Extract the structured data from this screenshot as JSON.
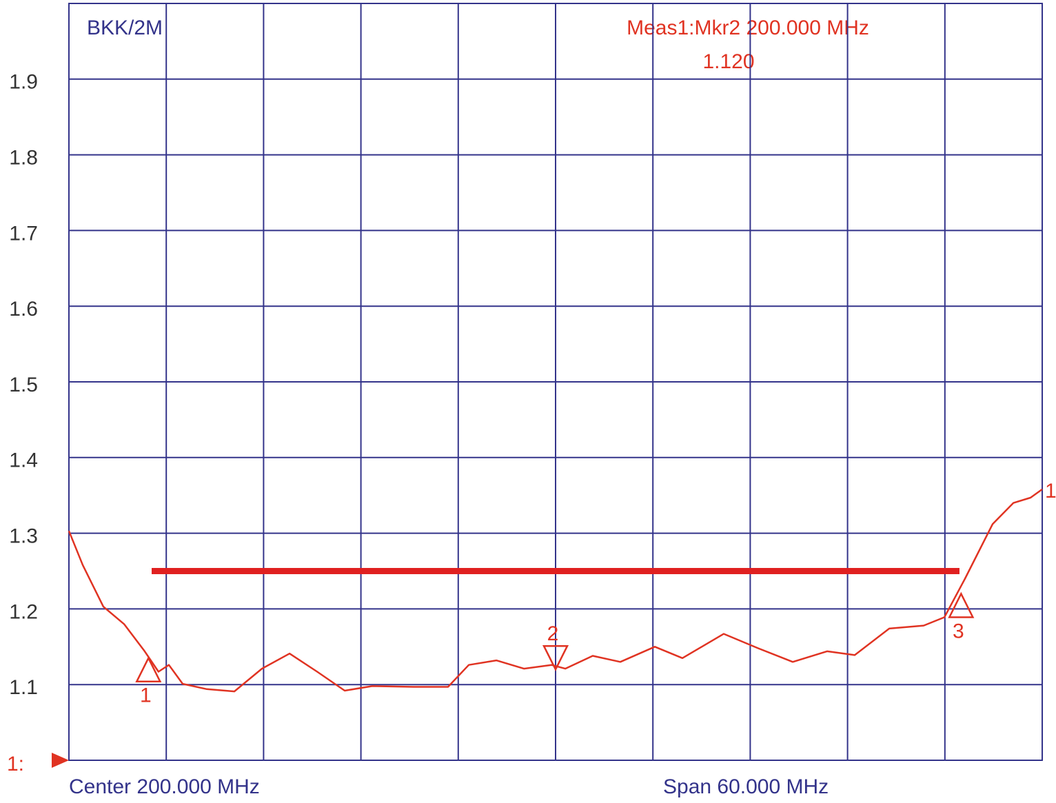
{
  "chart_data": {
    "type": "line",
    "title": "BKK/2M",
    "annotations": [
      "Meas1:Mkr2  200.000 MHz",
      "1.120"
    ],
    "x_start_label": "Center 200.000 MHz",
    "x_end_label": "Span 60.000 MHz",
    "reference_label": "1:",
    "xlim": [
      170,
      230
    ],
    "ylim": [
      1.0,
      2.0
    ],
    "yticks": [
      1.1,
      1.2,
      1.3,
      1.4,
      1.5,
      1.6,
      1.7,
      1.8,
      1.9
    ],
    "grid": true,
    "x": [
      170,
      170.85,
      172.12,
      173.4,
      174.67,
      175.52,
      176.16,
      177.01,
      178.5,
      180.2,
      181.9,
      183.6,
      185.3,
      187.0,
      188.7,
      191.25,
      193.37,
      194.65,
      196.35,
      198.05,
      199.75,
      200.6,
      202.29,
      203.99,
      206.12,
      207.82,
      210.37,
      212.49,
      214.62,
      216.74,
      218.44,
      220.57,
      222.69,
      223.97,
      225.24,
      226.94,
      228.22,
      229.28,
      230
    ],
    "series": [
      {
        "name": "1",
        "color": "#e03322",
        "values": [
          1.303,
          1.258,
          1.203,
          1.18,
          1.144,
          1.117,
          1.126,
          1.101,
          1.094,
          1.091,
          1.121,
          1.141,
          1.117,
          1.092,
          1.098,
          1.097,
          1.097,
          1.126,
          1.132,
          1.121,
          1.126,
          1.121,
          1.138,
          1.13,
          1.15,
          1.135,
          1.167,
          1.148,
          1.13,
          1.144,
          1.139,
          1.174,
          1.178,
          1.189,
          1.24,
          1.312,
          1.34,
          1.347,
          1.358
        ]
      }
    ],
    "limit_line": {
      "x": [
        175.1,
        224.9
      ],
      "y": 1.25,
      "color": "#e02020"
    },
    "markers": [
      {
        "label": "1",
        "x": 174.9,
        "y": 1.135,
        "direction": "up"
      },
      {
        "label": "2",
        "x": 200.0,
        "y": 1.12,
        "direction": "down"
      },
      {
        "label": "3",
        "x": 225.0,
        "y": 1.22,
        "direction": "up"
      }
    ]
  }
}
